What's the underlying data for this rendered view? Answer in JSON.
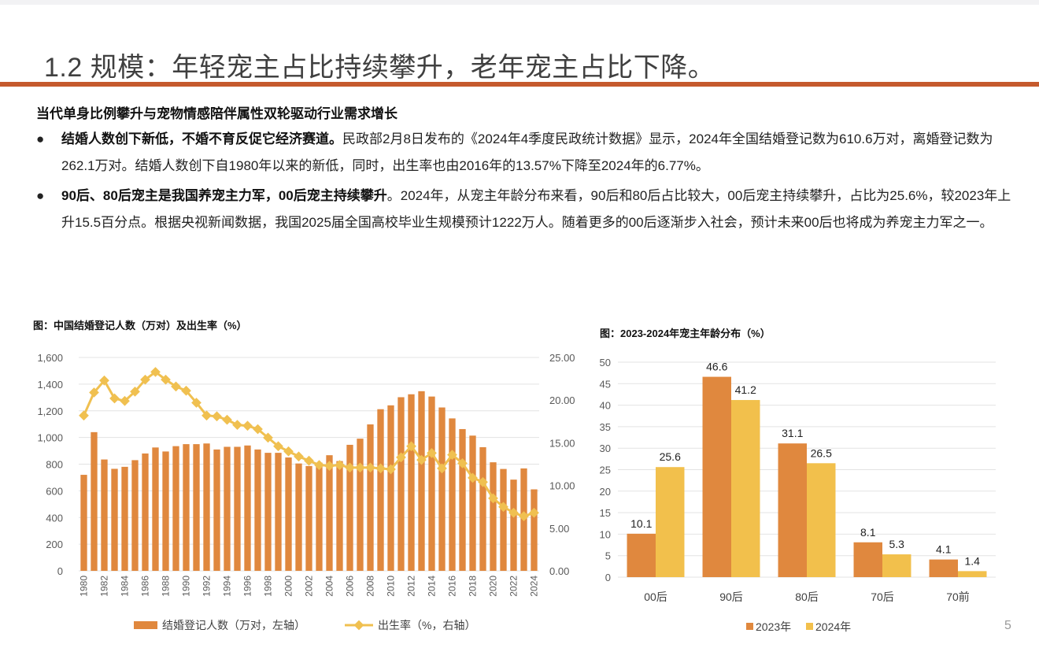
{
  "header": {
    "title": "1.2 规模：年轻宠主占比持续攀升，老年宠主占比下降。",
    "accent_color": "#c55a2d"
  },
  "section": {
    "subtitle": "当代单身比例攀升与宠物情感陪伴属性双轮驱动行业需求增长",
    "bullets": [
      {
        "bold": "结婚人数创下新低，不婚不育反促它经济赛道。",
        "text": "民政部2月8日发布的《2024年4季度民政统计数据》显示，2024年全国结婚登记数为610.6万对，离婚登记数为262.1万对。结婚人数创下自1980年以来的新低，同时，出生率也由2016年的13.57%下降至2024年的6.77%。"
      },
      {
        "bold": "90后、80后宠主是我国养宠主力军，00后宠主持续攀升",
        "text": "。2024年，从宠主年龄分布来看，90后和80后占比较大，00后宠主持续攀升，占比为25.6%，较2023年上升15.5百分点。根据央视新闻数据，我国2025届全国高校毕业生规模预计1222万人。随着更多的00后逐渐步入社会，预计未来00后也将成为养宠主力军之一。"
      }
    ]
  },
  "page_number": "5",
  "chart_data": [
    {
      "type": "bar+line",
      "title": "图：中国结婚登记人数（万对）及出生率（%）",
      "x": [
        1980,
        1981,
        1982,
        1983,
        1984,
        1985,
        1986,
        1987,
        1988,
        1989,
        1990,
        1991,
        1992,
        1993,
        1994,
        1995,
        1996,
        1997,
        1998,
        1999,
        2000,
        2001,
        2002,
        2003,
        2004,
        2005,
        2006,
        2007,
        2008,
        2009,
        2010,
        2011,
        2012,
        2013,
        2014,
        2015,
        2016,
        2017,
        2018,
        2019,
        2020,
        2021,
        2022,
        2023,
        2024
      ],
      "x_tick_labels": [
        "1980",
        "1982",
        "1984",
        "1986",
        "1988",
        "1990",
        "1992",
        "1994",
        "1996",
        "1998",
        "2000",
        "2002",
        "2004",
        "2006",
        "2008",
        "2010",
        "2012",
        "2014",
        "2016",
        "2018",
        "2020",
        "2022",
        "2024"
      ],
      "y_left": {
        "range": [
          0,
          1600
        ],
        "ticks": [
          "0",
          "200",
          "400",
          "600",
          "800",
          "1,000",
          "1,200",
          "1,400",
          "1,600"
        ]
      },
      "y_right": {
        "range": [
          0,
          25
        ],
        "ticks": [
          "0.00",
          "5.00",
          "10.00",
          "15.00",
          "20.00",
          "25.00"
        ]
      },
      "grid": true,
      "legend_placement": "bottom",
      "series": [
        {
          "name": "结婚登记人数（万对，左轴）",
          "type": "bar",
          "axis": "left",
          "color": "#e0883e",
          "values": [
            720,
            1040,
            835,
            765,
            780,
            830,
            880,
            925,
            895,
            935,
            950,
            950,
            955,
            910,
            930,
            930,
            940,
            910,
            885,
            885,
            850,
            805,
            786,
            811,
            867,
            823,
            945,
            991,
            1098,
            1212,
            1241,
            1302,
            1324,
            1347,
            1307,
            1225,
            1143,
            1063,
            1014,
            927,
            814,
            764,
            684,
            768,
            611
          ]
        },
        {
          "name": "出生率（%，右轴）",
          "type": "line",
          "axis": "right",
          "color": "#f0c050",
          "values": [
            18.2,
            20.9,
            22.3,
            20.2,
            19.9,
            21.0,
            22.4,
            23.3,
            22.4,
            21.6,
            21.1,
            19.7,
            18.2,
            18.1,
            17.7,
            17.1,
            17.0,
            16.6,
            15.6,
            14.6,
            14.0,
            13.4,
            12.9,
            12.4,
            12.3,
            12.4,
            12.1,
            12.1,
            12.1,
            12.0,
            11.9,
            13.3,
            14.6,
            13.0,
            13.8,
            12.0,
            13.6,
            12.6,
            10.9,
            10.4,
            8.5,
            7.5,
            6.8,
            6.4,
            6.8
          ]
        }
      ]
    },
    {
      "type": "bar",
      "title": "图：2023-2024年宠主年龄分布（%）",
      "categories": [
        "00后",
        "90后",
        "80后",
        "70后",
        "70前"
      ],
      "y": {
        "range": [
          0,
          50
        ],
        "ticks": [
          "0",
          "5",
          "10",
          "15",
          "20",
          "25",
          "30",
          "35",
          "40",
          "45",
          "50"
        ]
      },
      "grid": true,
      "legend_placement": "bottom",
      "series": [
        {
          "name": "2023年",
          "color": "#e0883e",
          "values": [
            10.1,
            46.6,
            31.1,
            8.1,
            4.1
          ],
          "labels": [
            "10.1",
            "46.6",
            "31.1",
            "8.1",
            "4.1"
          ]
        },
        {
          "name": "2024年",
          "color": "#f2c04c",
          "values": [
            25.6,
            41.2,
            26.5,
            5.3,
            1.4
          ],
          "labels": [
            "25.6",
            "41.2",
            "26.5",
            "5.3",
            "1.4"
          ]
        }
      ]
    }
  ]
}
